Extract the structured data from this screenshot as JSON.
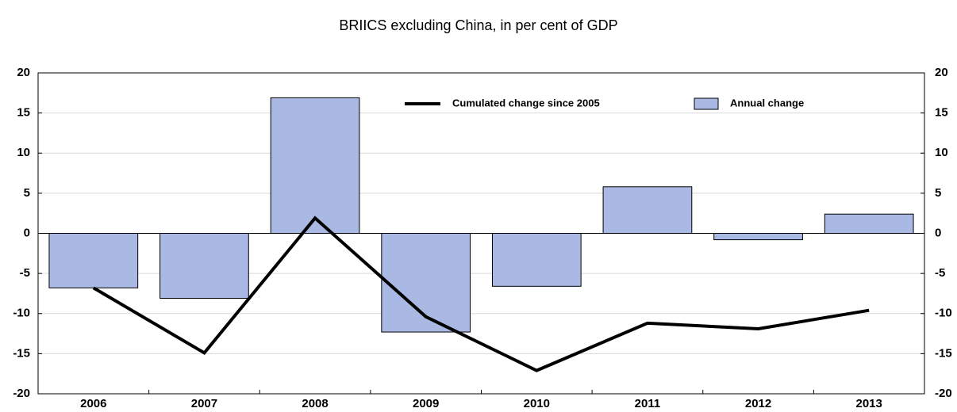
{
  "chart_data": {
    "type": "combo",
    "title": "BRIICS excluding China, in per cent of GDP",
    "categories": [
      "2006",
      "2007",
      "2008",
      "2009",
      "2010",
      "2011",
      "2012",
      "2013"
    ],
    "series": [
      {
        "name": "Cumulated change since 2005",
        "type": "line",
        "color": "#000000",
        "values": [
          -6.8,
          -14.9,
          1.9,
          -10.4,
          -17.1,
          -11.2,
          -11.9,
          -9.6
        ]
      },
      {
        "name": "Annual change",
        "type": "bar",
        "color": "#a9b9e3",
        "values": [
          -6.8,
          -8.1,
          16.9,
          -12.3,
          -6.6,
          5.8,
          -0.8,
          2.4
        ]
      }
    ],
    "ylim": [
      -20,
      20
    ],
    "yticks": [
      -20,
      -15,
      -10,
      -5,
      0,
      5,
      10,
      15,
      20
    ],
    "y2lim": [
      -20,
      20
    ],
    "y2ticks": [
      -20,
      -15,
      -10,
      -5,
      0,
      5,
      10,
      15,
      20
    ],
    "grid": true
  }
}
